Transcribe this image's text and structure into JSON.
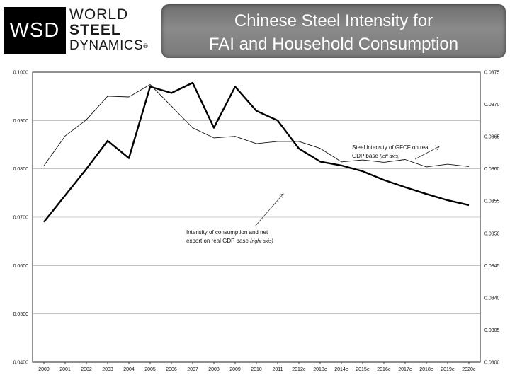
{
  "logo": {
    "abbr": "WSD",
    "line1": "WORLD",
    "line2": "STEEL",
    "line3": "DYNAMICS",
    "mark": "®"
  },
  "title": {
    "line1": "Chinese Steel Intensity for",
    "line2": "FAI and Household Consumption"
  },
  "chart_data": {
    "type": "line",
    "categories": [
      "2000",
      "2001",
      "2002",
      "2003",
      "2004",
      "2005",
      "2006",
      "2007",
      "2008",
      "2009",
      "2010",
      "2011",
      "2012e",
      "2013e",
      "2014e",
      "2015e",
      "2016e",
      "2017e",
      "2018e",
      "2019e",
      "2020e"
    ],
    "left_axis": {
      "ylim": [
        0.04,
        0.1
      ],
      "ticks": [
        "0.0400",
        "0.0500",
        "0.0600",
        "0.0700",
        "0.0800",
        "0.0900",
        "0.1000"
      ]
    },
    "right_axis": {
      "ylim": [
        0.03,
        0.0375
      ],
      "ticks": [
        "0.0300",
        "0.0305",
        "0.0340",
        "0.0345",
        "0.0350",
        "0.0355",
        "0.0360",
        "0.0365",
        "0.0370",
        "0.0375"
      ]
    },
    "series": [
      {
        "name": "Steel intensity of GFCF on real GDP base",
        "axis": "left",
        "values": [
          0.069,
          0.0745,
          0.08,
          0.0858,
          0.0822,
          0.097,
          0.0957,
          0.0978,
          0.0885,
          0.097,
          0.092,
          0.09,
          0.0842,
          0.0815,
          0.0807,
          0.0795,
          0.0777,
          0.0762,
          0.0748,
          0.0735,
          0.0725
        ]
      },
      {
        "name": "Intensity of consumption and net export on real GDP base",
        "axis": "right",
        "values": [
          0.03508,
          0.03585,
          0.03627,
          0.03688,
          0.03686,
          0.03718,
          0.03662,
          0.03606,
          0.0358,
          0.03584,
          0.03565,
          0.03571,
          0.03571,
          0.03553,
          0.03518,
          0.03523,
          0.03517,
          0.03524,
          0.03505,
          0.03512,
          0.03506
        ]
      }
    ],
    "annotations": [
      {
        "text": "Steel intensity of GFCF on real",
        "line2": "GDP base",
        "axis_note": "(left axis)"
      },
      {
        "text": "Intensity of consumption and net",
        "line2": "export on real GDP base",
        "axis_note": "(right axis)"
      }
    ],
    "grid": true
  }
}
